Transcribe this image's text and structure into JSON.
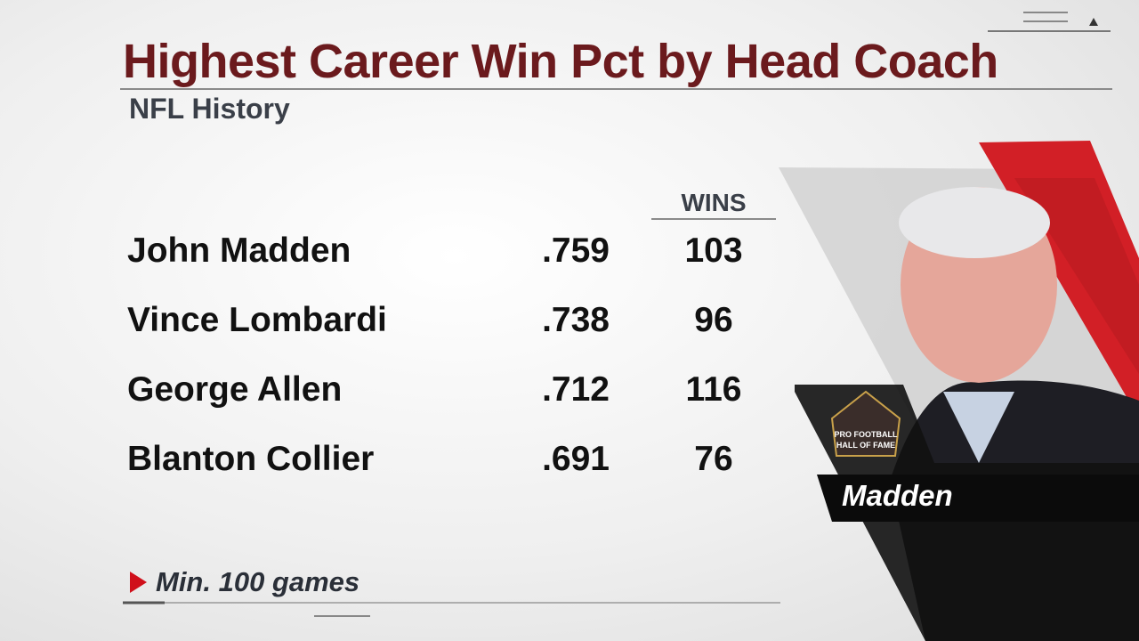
{
  "header": {
    "title": "Highest Career Win Pct by Head Coach",
    "subtitle": "NFL History"
  },
  "table": {
    "columns": [
      "WINS"
    ],
    "rows": [
      [
        "John Madden",
        ".759",
        "103"
      ],
      [
        "Vince Lombardi",
        ".738",
        "96"
      ],
      [
        "George Allen",
        ".712",
        "116"
      ],
      [
        "Blanton Collier",
        ".691",
        "76"
      ]
    ]
  },
  "footnote": "Min. 100 games",
  "photo": {
    "caption": "Madden",
    "logo": [
      "PRO FOOTBALL",
      "HALL OF FAME"
    ]
  }
}
